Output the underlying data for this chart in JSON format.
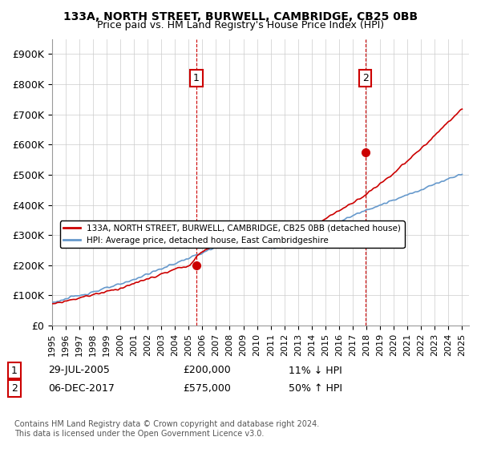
{
  "title1": "133A, NORTH STREET, BURWELL, CAMBRIDGE, CB25 0BB",
  "title2": "Price paid vs. HM Land Registry's House Price Index (HPI)",
  "ylabel_ticks": [
    "£0",
    "£100K",
    "£200K",
    "£300K",
    "£400K",
    "£500K",
    "£600K",
    "£700K",
    "£800K",
    "£900K"
  ],
  "ytick_values": [
    0,
    100000,
    200000,
    300000,
    400000,
    500000,
    600000,
    700000,
    800000,
    900000
  ],
  "ylim": [
    0,
    950000
  ],
  "xlim_start": 1995.0,
  "xlim_end": 2025.5,
  "hpi_color": "#6699cc",
  "price_color": "#cc0000",
  "marker1_x": 2005.57,
  "marker1_y": 200000,
  "marker2_x": 2017.92,
  "marker2_y": 575000,
  "legend_label1": "133A, NORTH STREET, BURWELL, CAMBRIDGE, CB25 0BB (detached house)",
  "legend_label2": "HPI: Average price, detached house, East Cambridgeshire",
  "note1_num": "1",
  "note1_date": "29-JUL-2005",
  "note1_price": "£200,000",
  "note1_hpi": "11% ↓ HPI",
  "note2_num": "2",
  "note2_date": "06-DEC-2017",
  "note2_price": "£575,000",
  "note2_hpi": "50% ↑ HPI",
  "footer": "Contains HM Land Registry data © Crown copyright and database right 2024.\nThis data is licensed under the Open Government Licence v3.0.",
  "vline1_x": 2005.57,
  "vline2_x": 2017.92,
  "bg_color": "#ffffff",
  "grid_color": "#cccccc"
}
